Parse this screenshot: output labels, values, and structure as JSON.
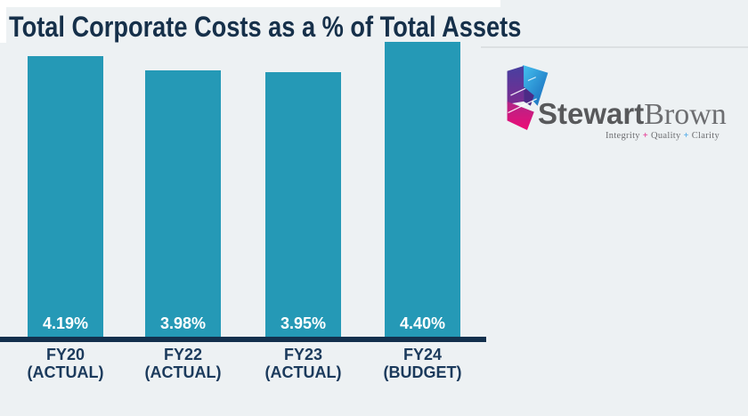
{
  "page": {
    "background": "#edf1f3",
    "top_strip_color": "#ffffff"
  },
  "title": {
    "text": "Total Corporate Costs as a % of Total Assets",
    "color": "#16304a"
  },
  "chart_data": {
    "type": "bar",
    "title": "Total Corporate Costs as a % of Total Assets",
    "categories": [
      "FY20 (ACTUAL)",
      "FY22 (ACTUAL)",
      "FY23 (ACTUAL)",
      "FY24 (BUDGET)"
    ],
    "category_lines": [
      [
        "FY20",
        "(ACTUAL)"
      ],
      [
        "FY22",
        "(ACTUAL)"
      ],
      [
        "FY23",
        "(ACTUAL)"
      ],
      [
        "FY24",
        "(BUDGET)"
      ]
    ],
    "values": [
      4.19,
      3.98,
      3.95,
      4.4
    ],
    "value_labels": [
      "4.19%",
      "3.98%",
      "3.95%",
      "4.40%"
    ],
    "xlabel": "",
    "ylabel": "",
    "ylim": [
      0,
      4.6
    ],
    "gridlines": false,
    "legend": false,
    "bar_color": "#2599b6",
    "axis_color": "#13304d",
    "category_label_color": "#1b3a5c",
    "value_label_color": "#ffffff"
  },
  "logo": {
    "brand_bold": "Stewart",
    "brand_light": "Brown",
    "brand_bold_color": "#58595b",
    "brand_light_color": "#6d6e71",
    "tagline_parts": [
      {
        "text": "Integrity",
        "color": "#6d6e71"
      },
      {
        "text": " + ",
        "color": "#e5308e"
      },
      {
        "text": "Quality",
        "color": "#6d6e71"
      },
      {
        "text": " + ",
        "color": "#4aa8e8"
      },
      {
        "text": "Clarity",
        "color": "#6d6e71"
      }
    ],
    "mark_colors": {
      "blue_top": "#45c2f0",
      "blue_bottom": "#1565b8",
      "purple_top": "#4740a0",
      "purple_bottom": "#7b2b90",
      "pink_top": "#b02688",
      "pink_bottom": "#ee0c76"
    }
  }
}
